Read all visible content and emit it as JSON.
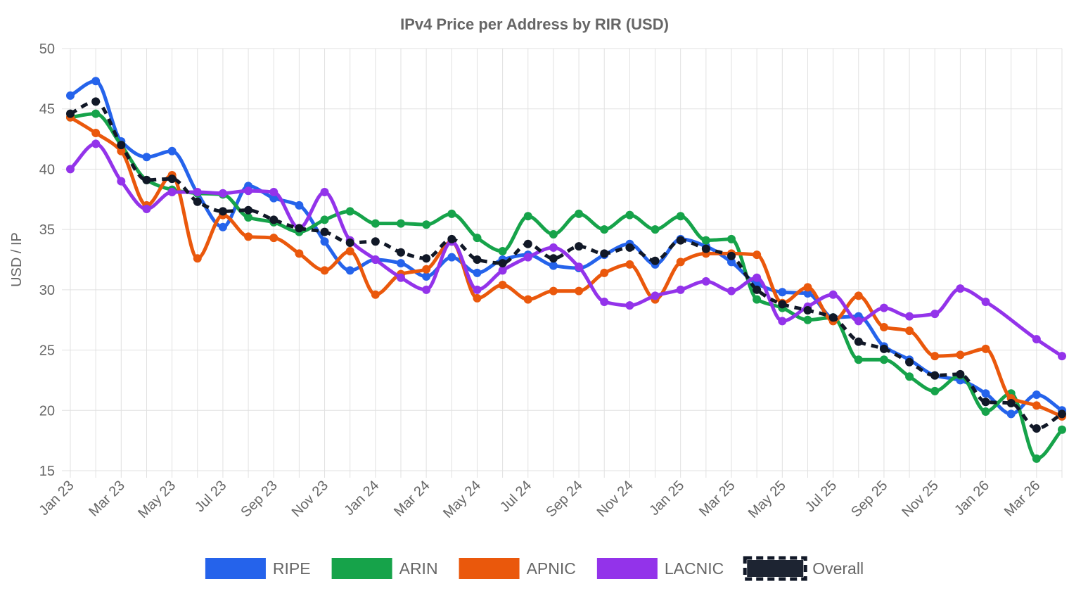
{
  "chart_data": {
    "type": "line",
    "title": "IPv4 Price per Address by RIR (USD)",
    "xlabel": "",
    "ylabel": "USD / IP",
    "ylim": [
      15,
      50
    ],
    "yticks": [
      50,
      45,
      40,
      35,
      30,
      25,
      20,
      15
    ],
    "grid": true,
    "legend_position": "bottom",
    "x": [
      "Jan 23",
      "Feb 23",
      "Mar 23",
      "Apr 23",
      "May 23",
      "Jun 23",
      "Jul 23",
      "Aug 23",
      "Sep 23",
      "Oct 23",
      "Nov 23",
      "Dec 23",
      "Jan 24",
      "Feb 24",
      "Mar 24",
      "Apr 24",
      "May 24",
      "Jun 24",
      "Jul 24",
      "Aug 24",
      "Sep 24",
      "Oct 24",
      "Nov 24",
      "Dec 24",
      "Jan 25",
      "Feb 25",
      "Mar 25",
      "Apr 25",
      "May 25",
      "Jun 25",
      "Jul 25",
      "Aug 25",
      "Sep 25",
      "Oct 25",
      "Nov 25",
      "Dec 25",
      "Jan 26",
      "Feb 26",
      "Mar 26",
      "Apr 26"
    ],
    "x_tick_labels": [
      "Jan 23",
      "Mar 23",
      "May 23",
      "Jul 23",
      "Sep 23",
      "Nov 23",
      "Jan 24",
      "Mar 24",
      "May 24",
      "Jul 24",
      "Sep 24",
      "Nov 24",
      "Jan 25",
      "Mar 25",
      "May 25",
      "Jul 25",
      "Sep 25",
      "Nov 25",
      "Jan 26",
      "Mar 26"
    ],
    "series": [
      {
        "name": "RIPE",
        "color": "#2563eb",
        "dashed": false,
        "values": [
          46.1,
          47.3,
          42.3,
          41.0,
          41.5,
          38.0,
          35.2,
          38.6,
          37.6,
          37.0,
          34.0,
          31.6,
          32.5,
          32.2,
          31.1,
          32.7,
          31.4,
          32.5,
          32.9,
          32.0,
          31.8,
          32.9,
          33.8,
          32.1,
          34.2,
          33.6,
          32.3,
          30.5,
          29.8,
          29.7,
          27.7,
          27.8,
          25.3,
          24.2,
          22.9,
          22.5,
          21.4,
          19.7,
          21.3,
          20.0
        ]
      },
      {
        "name": "ARIN",
        "color": "#16a34a",
        "dashed": false,
        "values": [
          44.3,
          44.6,
          42.0,
          39.1,
          38.3,
          38.0,
          37.9,
          36.0,
          35.6,
          34.8,
          35.8,
          36.5,
          35.5,
          35.5,
          35.4,
          36.3,
          34.3,
          33.2,
          36.1,
          34.6,
          36.3,
          35.0,
          36.2,
          35.0,
          36.1,
          34.1,
          34.2,
          29.2,
          28.5,
          27.5,
          27.7,
          24.2,
          24.2,
          22.8,
          21.6,
          22.9,
          19.9,
          21.4,
          16.0,
          18.4
        ]
      },
      {
        "name": "APNIC",
        "color": "#ea580c",
        "dashed": false,
        "values": [
          44.3,
          43.0,
          41.5,
          37.0,
          39.5,
          32.6,
          36.2,
          34.4,
          34.3,
          33.0,
          31.6,
          33.2,
          29.6,
          31.3,
          31.7,
          34.0,
          29.3,
          30.4,
          29.2,
          29.9,
          29.9,
          31.4,
          32.1,
          29.2,
          32.3,
          33.0,
          33.0,
          32.9,
          28.9,
          30.2,
          27.4,
          29.5,
          26.9,
          26.6,
          24.5,
          24.6,
          25.1,
          21.0,
          20.4,
          19.5
        ]
      },
      {
        "name": "LACNIC",
        "color": "#9333ea",
        "dashed": false,
        "values": [
          40.0,
          42.1,
          39.0,
          36.7,
          38.1,
          38.1,
          38.0,
          38.2,
          38.1,
          35.1,
          38.1,
          34.1,
          32.5,
          31.0,
          30.0,
          34.0,
          30.0,
          31.6,
          32.7,
          33.5,
          31.9,
          29.0,
          28.7,
          29.5,
          30.0,
          30.7,
          29.9,
          31.0,
          27.4,
          28.6,
          29.6,
          27.4,
          28.5,
          27.8,
          28.0,
          30.1,
          29.0,
          null,
          25.9,
          24.5
        ]
      },
      {
        "name": "Overall",
        "color": "#111827",
        "dashed": true,
        "values": [
          44.6,
          45.6,
          42.0,
          39.1,
          39.2,
          37.3,
          36.5,
          36.6,
          35.8,
          35.1,
          34.8,
          33.9,
          34.0,
          33.1,
          32.6,
          34.2,
          32.5,
          32.2,
          33.8,
          32.6,
          33.6,
          33.0,
          33.5,
          32.4,
          34.1,
          33.4,
          32.8,
          30.0,
          28.8,
          28.3,
          27.7,
          25.7,
          25.1,
          24.0,
          22.9,
          23.0,
          20.7,
          20.6,
          18.5,
          19.7
        ]
      }
    ]
  }
}
